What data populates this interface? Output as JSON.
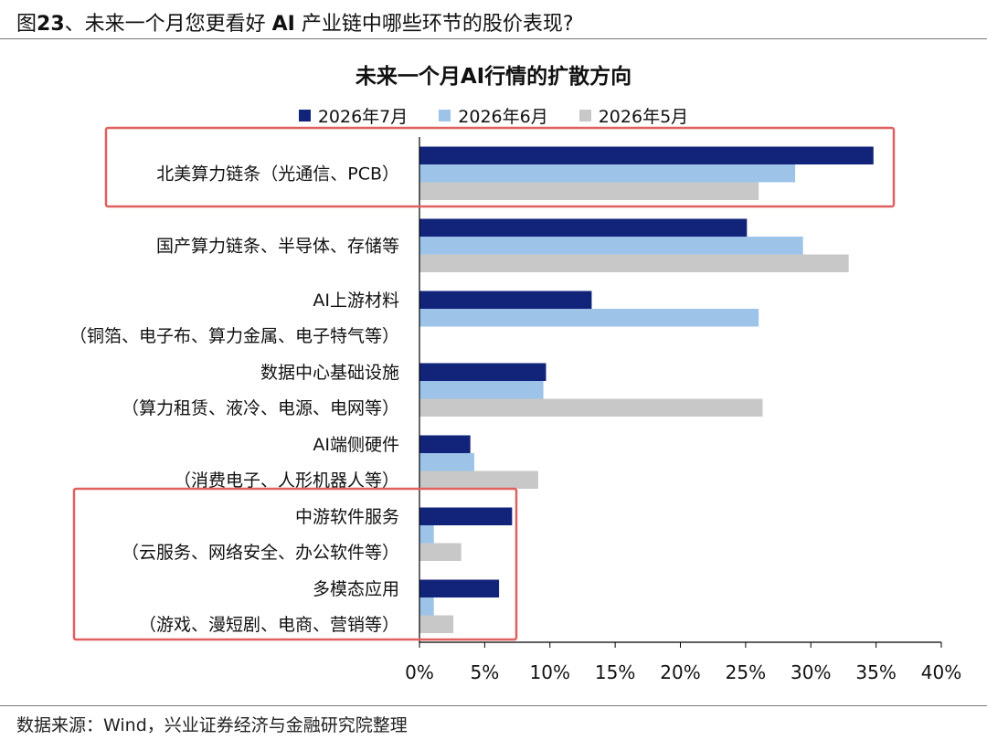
{
  "figure_heading": {
    "prefix": "图",
    "number": "23",
    "text_a": "、未来一个月您更看好 ",
    "ai": "AI",
    "text_b": " 产业链中哪些环节的股价表现?"
  },
  "source_note": "数据来源：Wind，兴业证券经济与金融研究院整理",
  "colors": {
    "series_2026_07": "#12237a",
    "series_2026_06": "#9dc3e8",
    "series_2026_05": "#c8c8c8",
    "highlight_box": "#e06060",
    "axis": "#000000"
  },
  "chart_data": {
    "type": "bar",
    "orientation": "horizontal",
    "title": "未来一个月AI行情的扩散方向",
    "legend_position": "top",
    "grid": false,
    "xlim": [
      0,
      40
    ],
    "x_ticks": [
      "0%",
      "5%",
      "10%",
      "15%",
      "20%",
      "25%",
      "30%",
      "35%",
      "40%"
    ],
    "categories": [
      [
        "北美算力链条（光通信、PCB）"
      ],
      [
        "国产算力链条、半导体、存储等"
      ],
      [
        "AI上游材料",
        "（铜箔、电子布、算力金属、电子特气等）"
      ],
      [
        "数据中心基础设施",
        "（算力租赁、液冷、电源、电网等）"
      ],
      [
        "AI端侧硬件",
        "（消费电子、人形机器人等）"
      ],
      [
        "中游软件服务",
        "（云服务、网络安全、办公软件等）"
      ],
      [
        "多模态应用",
        "（游戏、漫短剧、电商、营销等）"
      ]
    ],
    "series": [
      {
        "name": "2026年7月",
        "values": [
          34.8,
          25.1,
          13.2,
          9.7,
          3.9,
          7.1,
          6.1
        ]
      },
      {
        "name": "2026年6月",
        "values": [
          28.8,
          29.4,
          26.0,
          9.5,
          4.2,
          1.1,
          1.1
        ]
      },
      {
        "name": "2026年5月",
        "values": [
          26.0,
          32.9,
          0,
          26.3,
          9.1,
          3.2,
          2.6
        ]
      }
    ],
    "highlighted_groups": [
      [
        0
      ],
      [
        5,
        6
      ]
    ]
  }
}
